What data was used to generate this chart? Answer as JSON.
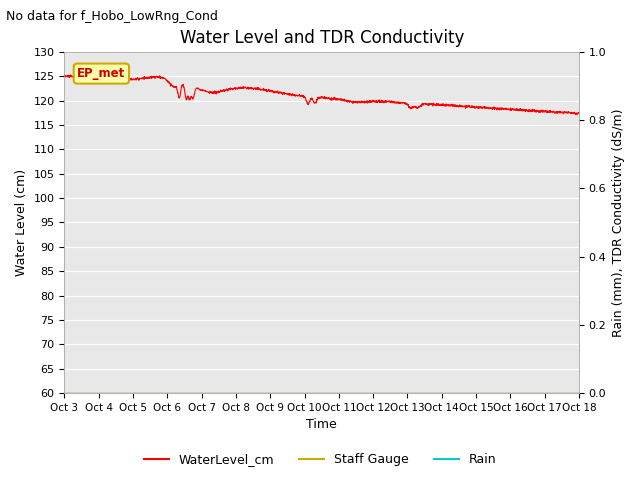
{
  "title": "Water Level and TDR Conductivity",
  "subtitle": "No data for f_Hobo_LowRng_Cond",
  "xlabel": "Time",
  "ylabel_left": "Water Level (cm)",
  "ylabel_right": "Rain (mm), TDR Conductivity (dS/m)",
  "ylim_left": [
    60,
    130
  ],
  "ylim_right": [
    0.0,
    1.0
  ],
  "yticks_left": [
    60,
    65,
    70,
    75,
    80,
    85,
    90,
    95,
    100,
    105,
    110,
    115,
    120,
    125,
    130
  ],
  "yticks_right": [
    0.0,
    0.2,
    0.4,
    0.6,
    0.8,
    1.0
  ],
  "xtick_labels": [
    "Oct 3",
    "Oct 4",
    "Oct 5",
    "Oct 6",
    "Oct 7",
    "Oct 8",
    "Oct 9",
    "Oct 10",
    "Oct 11",
    "Oct 12",
    "Oct 13",
    "Oct 14",
    "Oct 15",
    "Oct 16",
    "Oct 17",
    "Oct 18"
  ],
  "legend_labels": [
    "WaterLevel_cm",
    "Staff Gauge",
    "Rain"
  ],
  "legend_colors": [
    "#ff0000",
    "#ccaa00",
    "#00cccc"
  ],
  "box_label": "EP_met",
  "box_bg": "#ffffaa",
  "box_border": "#ccaa00",
  "background_color": "#e8e8e8",
  "water_level_color": "#ff0000",
  "rain_color": "#00cccc",
  "staff_gauge_color": "#ccaa00",
  "water_level_linewidth": 0.8,
  "title_fontsize": 12,
  "subtitle_fontsize": 9,
  "axis_label_fontsize": 9,
  "tick_fontsize": 8
}
